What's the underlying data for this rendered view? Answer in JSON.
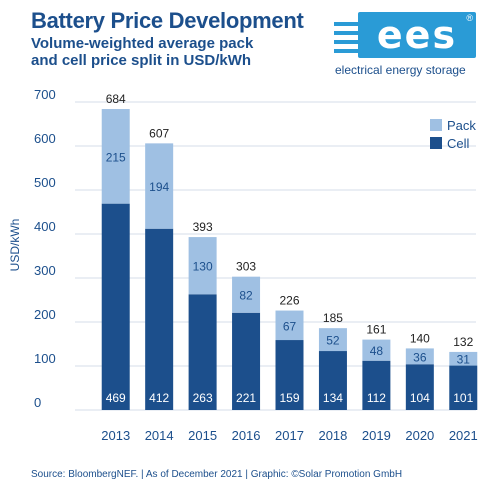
{
  "header": {
    "title": "Battery Price Development",
    "subtitle_line1": "Volume-weighted average pack",
    "subtitle_line2": "and cell price split in USD/kWh"
  },
  "logo": {
    "text": "ees",
    "registered": "®",
    "caption": "electrical energy storage",
    "color": "#2a9bd6"
  },
  "chart_data": {
    "type": "bar",
    "stacked": true,
    "categories": [
      "2013",
      "2014",
      "2015",
      "2016",
      "2017",
      "2018",
      "2019",
      "2020",
      "2021"
    ],
    "series": [
      {
        "name": "Cell",
        "color": "#1c4f8c",
        "values": [
          469,
          412,
          263,
          221,
          159,
          134,
          112,
          104,
          101
        ]
      },
      {
        "name": "Pack",
        "color": "#9fc0e3",
        "values": [
          215,
          194,
          130,
          82,
          67,
          52,
          48,
          36,
          31
        ]
      }
    ],
    "totals": [
      684,
      607,
      393,
      303,
      226,
      185,
      161,
      140,
      132
    ],
    "ylabel": "USD/kWh",
    "ylim": [
      0,
      700
    ],
    "yticks": [
      "0",
      "100",
      "200",
      "300",
      "400",
      "500",
      "600",
      "700"
    ],
    "grid": true,
    "legend": "top-right"
  },
  "footer": {
    "source": "Source: BloombergNEF. | As of December 2021 | Graphic: ©Solar Promotion GmbH"
  }
}
